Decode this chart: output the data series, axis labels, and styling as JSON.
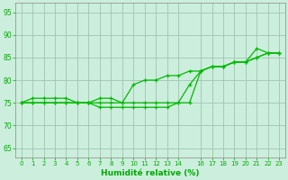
{
  "xlabel": "Humidité relative (%)",
  "background_color": "#cceedd",
  "grid_color": "#99bbaa",
  "line_color": "#00bb00",
  "xlim": [
    -0.5,
    23.5
  ],
  "ylim": [
    63,
    97
  ],
  "yticks": [
    65,
    70,
    75,
    80,
    85,
    90,
    95
  ],
  "xticks": [
    0,
    1,
    2,
    3,
    4,
    5,
    6,
    7,
    8,
    9,
    10,
    11,
    12,
    13,
    14,
    16,
    17,
    18,
    19,
    20,
    21,
    22,
    23
  ],
  "hours": [
    0,
    1,
    2,
    3,
    4,
    5,
    6,
    7,
    8,
    9,
    10,
    11,
    12,
    13,
    14,
    15,
    16,
    17,
    18,
    19,
    20,
    21,
    22,
    23
  ],
  "line_top": [
    75,
    76,
    76,
    76,
    76,
    75,
    75,
    76,
    76,
    75,
    79,
    80,
    80,
    81,
    81,
    82,
    82,
    83,
    83,
    84,
    84,
    87,
    86,
    86
  ],
  "line_bot": [
    75,
    75,
    75,
    75,
    75,
    75,
    75,
    74,
    74,
    74,
    74,
    74,
    74,
    74,
    75,
    75,
    82,
    83,
    83,
    84,
    84,
    85,
    86,
    86
  ],
  "line_mid": [
    75,
    75,
    75,
    75,
    75,
    75,
    75,
    75,
    75,
    75,
    75,
    75,
    75,
    75,
    75,
    79,
    82,
    83,
    83,
    84,
    84,
    85,
    86,
    86
  ]
}
